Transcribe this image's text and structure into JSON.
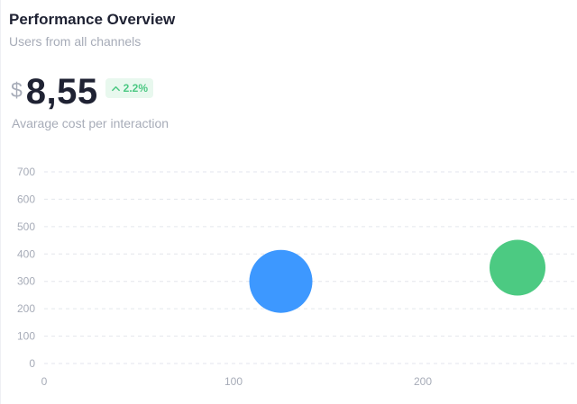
{
  "header": {
    "title": "Performance Overview",
    "subtitle": "Users from all channels"
  },
  "kpi": {
    "currency": "$",
    "value": "8,55",
    "change": "2.2%",
    "change_icon": "arrow-up-icon",
    "label": "Avarage cost per interaction"
  },
  "colors": {
    "positive": "#4cc883",
    "series_blue": "#3d98ff",
    "series_green": "#4cca82"
  },
  "chart_data": {
    "type": "scatter",
    "title": "",
    "xlabel": "",
    "ylabel": "",
    "xticks": [
      0,
      100,
      200
    ],
    "yticks": [
      0,
      100,
      200,
      300,
      400,
      500,
      600,
      700
    ],
    "xlim": [
      0,
      280
    ],
    "ylim": [
      0,
      700
    ],
    "grid": true,
    "series": [
      {
        "color": "#3d98ff",
        "points": [
          {
            "x": 125,
            "y": 300,
            "r": 35
          }
        ]
      },
      {
        "color": "#4cca82",
        "points": [
          {
            "x": 250,
            "y": 350,
            "r": 31
          }
        ]
      }
    ]
  }
}
